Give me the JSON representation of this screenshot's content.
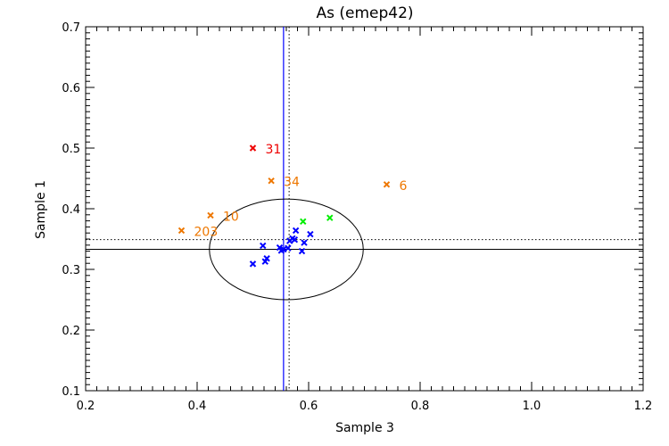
{
  "chart_data": {
    "type": "scatter",
    "title": "As (emep42)",
    "xlabel": "Sample 3",
    "ylabel": "Sample 1",
    "xlim": [
      0.2,
      1.2
    ],
    "ylim": [
      0.1,
      0.7
    ],
    "xticks": [
      "0.2",
      "0.4",
      "0.6",
      "0.8",
      "1.0",
      "1.2"
    ],
    "yticks": [
      "0.1",
      "0.2",
      "0.3",
      "0.4",
      "0.5",
      "0.6",
      "0.7"
    ],
    "x_minor_step": 0.02,
    "y_minor_step": 0.01,
    "reference_lines": {
      "vertical_solid": {
        "x": 0.555,
        "color": "#0000ff"
      },
      "vertical_dotted": {
        "x": 0.565,
        "color": "#000000"
      },
      "horizontal_solid": {
        "y": 0.333,
        "color": "#000000"
      },
      "horizontal_dotted": {
        "y": 0.349,
        "color": "#000000"
      }
    },
    "ellipse": {
      "cx": 0.56,
      "cy": 0.333,
      "rx": 0.138,
      "ry": 0.083,
      "color": "#000000"
    },
    "series": [
      {
        "name": "blue",
        "color": "#0000ff",
        "points": [
          {
            "x": 0.5,
            "y": 0.309
          },
          {
            "x": 0.518,
            "y": 0.339
          },
          {
            "x": 0.522,
            "y": 0.313
          },
          {
            "x": 0.525,
            "y": 0.318
          },
          {
            "x": 0.548,
            "y": 0.336
          },
          {
            "x": 0.551,
            "y": 0.331
          },
          {
            "x": 0.555,
            "y": 0.333
          },
          {
            "x": 0.563,
            "y": 0.335
          },
          {
            "x": 0.566,
            "y": 0.347
          },
          {
            "x": 0.571,
            "y": 0.351
          },
          {
            "x": 0.575,
            "y": 0.349
          },
          {
            "x": 0.577,
            "y": 0.364
          },
          {
            "x": 0.588,
            "y": 0.33
          },
          {
            "x": 0.592,
            "y": 0.344
          },
          {
            "x": 0.603,
            "y": 0.358
          }
        ]
      },
      {
        "name": "green",
        "color": "#00ee00",
        "points": [
          {
            "x": 0.59,
            "y": 0.379
          },
          {
            "x": 0.638,
            "y": 0.385
          }
        ]
      },
      {
        "name": "orange",
        "color": "#ee7700",
        "points": [
          {
            "x": 0.533,
            "y": 0.446,
            "label": "34"
          },
          {
            "x": 0.74,
            "y": 0.44,
            "label": "6"
          },
          {
            "x": 0.424,
            "y": 0.389,
            "label": "10"
          },
          {
            "x": 0.372,
            "y": 0.364,
            "label": "203"
          }
        ]
      },
      {
        "name": "red",
        "color": "#ee0000",
        "points": [
          {
            "x": 0.5,
            "y": 0.5,
            "label": "31"
          }
        ]
      }
    ]
  }
}
